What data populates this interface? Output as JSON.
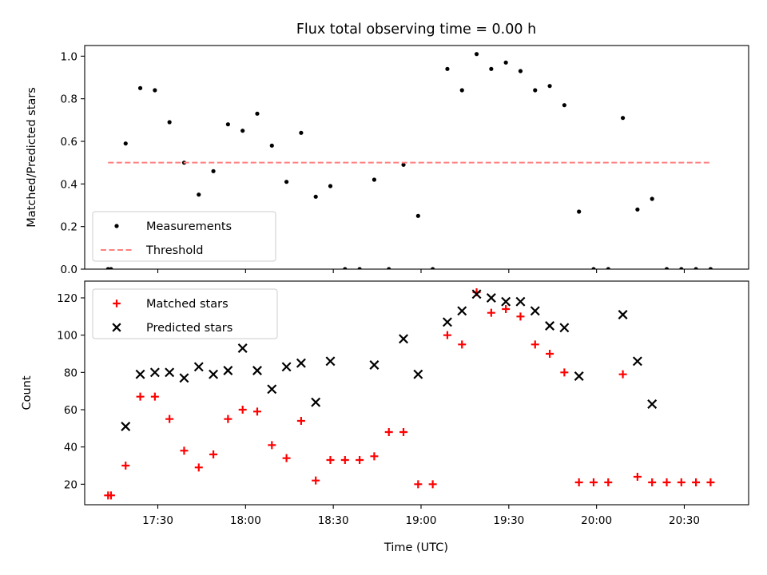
{
  "chart_data": [
    {
      "type": "scatter",
      "title": "Flux total observing time = 0.00 h",
      "ylabel": "Matched/Predicted stars",
      "ylim": [
        0,
        1.05
      ],
      "yticks": [
        "0.0",
        "0.2",
        "0.4",
        "0.6",
        "0.8",
        "1.0"
      ],
      "xlim": [
        "17:05",
        "20:52"
      ],
      "legend_position": "lower-left",
      "series": [
        {
          "name": "Measurements",
          "color": "#000000",
          "marker": "dot",
          "points": [
            {
              "x": "17:13",
              "y": 0.0
            },
            {
              "x": "17:14",
              "y": 0.0
            },
            {
              "x": "17:19",
              "y": 0.59
            },
            {
              "x": "17:24",
              "y": 0.85
            },
            {
              "x": "17:29",
              "y": 0.84
            },
            {
              "x": "17:34",
              "y": 0.69
            },
            {
              "x": "17:39",
              "y": 0.5
            },
            {
              "x": "17:44",
              "y": 0.35
            },
            {
              "x": "17:49",
              "y": 0.46
            },
            {
              "x": "17:54",
              "y": 0.68
            },
            {
              "x": "17:59",
              "y": 0.65
            },
            {
              "x": "18:04",
              "y": 0.73
            },
            {
              "x": "18:09",
              "y": 0.58
            },
            {
              "x": "18:14",
              "y": 0.41
            },
            {
              "x": "18:19",
              "y": 0.64
            },
            {
              "x": "18:24",
              "y": 0.34
            },
            {
              "x": "18:29",
              "y": 0.39
            },
            {
              "x": "18:34",
              "y": 0.0
            },
            {
              "x": "18:39",
              "y": 0.0
            },
            {
              "x": "18:44",
              "y": 0.42
            },
            {
              "x": "18:49",
              "y": 0.0
            },
            {
              "x": "18:54",
              "y": 0.49
            },
            {
              "x": "18:59",
              "y": 0.25
            },
            {
              "x": "19:04",
              "y": 0.0
            },
            {
              "x": "19:09",
              "y": 0.94
            },
            {
              "x": "19:14",
              "y": 0.84
            },
            {
              "x": "19:19",
              "y": 1.01
            },
            {
              "x": "19:24",
              "y": 0.94
            },
            {
              "x": "19:29",
              "y": 0.97
            },
            {
              "x": "19:34",
              "y": 0.93
            },
            {
              "x": "19:39",
              "y": 0.84
            },
            {
              "x": "19:44",
              "y": 0.86
            },
            {
              "x": "19:49",
              "y": 0.77
            },
            {
              "x": "19:54",
              "y": 0.27
            },
            {
              "x": "19:59",
              "y": 0.0
            },
            {
              "x": "20:04",
              "y": 0.0
            },
            {
              "x": "20:09",
              "y": 0.71
            },
            {
              "x": "20:14",
              "y": 0.28
            },
            {
              "x": "20:19",
              "y": 0.33
            },
            {
              "x": "20:24",
              "y": 0.0
            },
            {
              "x": "20:29",
              "y": 0.0
            },
            {
              "x": "20:34",
              "y": 0.0
            },
            {
              "x": "20:39",
              "y": 0.0
            }
          ]
        },
        {
          "name": "Threshold",
          "color": "#ff7f7f",
          "marker": "dashed-line",
          "points": [
            {
              "x": "17:13",
              "y": 0.5
            },
            {
              "x": "20:39",
              "y": 0.5
            }
          ]
        }
      ]
    },
    {
      "type": "scatter",
      "xlabel": "Time (UTC)",
      "ylabel": "Count",
      "ylim": [
        9,
        129
      ],
      "yticks": [
        "20",
        "40",
        "60",
        "80",
        "100",
        "120"
      ],
      "xticks": [
        "17:30",
        "18:00",
        "18:30",
        "19:00",
        "19:30",
        "20:00",
        "20:30"
      ],
      "xlim": [
        "17:05",
        "20:52"
      ],
      "legend_position": "upper-left",
      "series": [
        {
          "name": "Matched stars",
          "color": "#ff0000",
          "marker": "plus",
          "points": [
            {
              "x": "17:13",
              "y": 14
            },
            {
              "x": "17:14",
              "y": 14
            },
            {
              "x": "17:19",
              "y": 30
            },
            {
              "x": "17:24",
              "y": 67
            },
            {
              "x": "17:29",
              "y": 67
            },
            {
              "x": "17:34",
              "y": 55
            },
            {
              "x": "17:39",
              "y": 38
            },
            {
              "x": "17:44",
              "y": 29
            },
            {
              "x": "17:49",
              "y": 36
            },
            {
              "x": "17:54",
              "y": 55
            },
            {
              "x": "17:59",
              "y": 60
            },
            {
              "x": "18:04",
              "y": 59
            },
            {
              "x": "18:09",
              "y": 41
            },
            {
              "x": "18:14",
              "y": 34
            },
            {
              "x": "18:19",
              "y": 54
            },
            {
              "x": "18:24",
              "y": 22
            },
            {
              "x": "18:29",
              "y": 33
            },
            {
              "x": "18:34",
              "y": 33
            },
            {
              "x": "18:39",
              "y": 33
            },
            {
              "x": "18:44",
              "y": 35
            },
            {
              "x": "18:49",
              "y": 48
            },
            {
              "x": "18:54",
              "y": 48
            },
            {
              "x": "18:59",
              "y": 20
            },
            {
              "x": "19:04",
              "y": 20
            },
            {
              "x": "19:09",
              "y": 100
            },
            {
              "x": "19:14",
              "y": 95
            },
            {
              "x": "19:19",
              "y": 123
            },
            {
              "x": "19:24",
              "y": 112
            },
            {
              "x": "19:29",
              "y": 114
            },
            {
              "x": "19:34",
              "y": 110
            },
            {
              "x": "19:39",
              "y": 95
            },
            {
              "x": "19:44",
              "y": 90
            },
            {
              "x": "19:49",
              "y": 80
            },
            {
              "x": "19:54",
              "y": 21
            },
            {
              "x": "19:59",
              "y": 21
            },
            {
              "x": "20:04",
              "y": 21
            },
            {
              "x": "20:09",
              "y": 79
            },
            {
              "x": "20:14",
              "y": 24
            },
            {
              "x": "20:19",
              "y": 21
            },
            {
              "x": "20:24",
              "y": 21
            },
            {
              "x": "20:29",
              "y": 21
            },
            {
              "x": "20:34",
              "y": 21
            },
            {
              "x": "20:39",
              "y": 21
            }
          ]
        },
        {
          "name": "Predicted stars",
          "color": "#000000",
          "marker": "cross",
          "points": [
            {
              "x": "17:19",
              "y": 51
            },
            {
              "x": "17:24",
              "y": 79
            },
            {
              "x": "17:29",
              "y": 80
            },
            {
              "x": "17:34",
              "y": 80
            },
            {
              "x": "17:39",
              "y": 77
            },
            {
              "x": "17:44",
              "y": 83
            },
            {
              "x": "17:49",
              "y": 79
            },
            {
              "x": "17:54",
              "y": 81
            },
            {
              "x": "17:59",
              "y": 93
            },
            {
              "x": "18:04",
              "y": 81
            },
            {
              "x": "18:09",
              "y": 71
            },
            {
              "x": "18:14",
              "y": 83
            },
            {
              "x": "18:19",
              "y": 85
            },
            {
              "x": "18:24",
              "y": 64
            },
            {
              "x": "18:29",
              "y": 86
            },
            {
              "x": "18:44",
              "y": 84
            },
            {
              "x": "18:54",
              "y": 98
            },
            {
              "x": "18:59",
              "y": 79
            },
            {
              "x": "19:09",
              "y": 107
            },
            {
              "x": "19:14",
              "y": 113
            },
            {
              "x": "19:19",
              "y": 122
            },
            {
              "x": "19:24",
              "y": 120
            },
            {
              "x": "19:29",
              "y": 118
            },
            {
              "x": "19:34",
              "y": 118
            },
            {
              "x": "19:39",
              "y": 113
            },
            {
              "x": "19:44",
              "y": 105
            },
            {
              "x": "19:49",
              "y": 104
            },
            {
              "x": "19:54",
              "y": 78
            },
            {
              "x": "20:09",
              "y": 111
            },
            {
              "x": "20:14",
              "y": 86
            },
            {
              "x": "20:19",
              "y": 63
            }
          ]
        }
      ]
    }
  ]
}
